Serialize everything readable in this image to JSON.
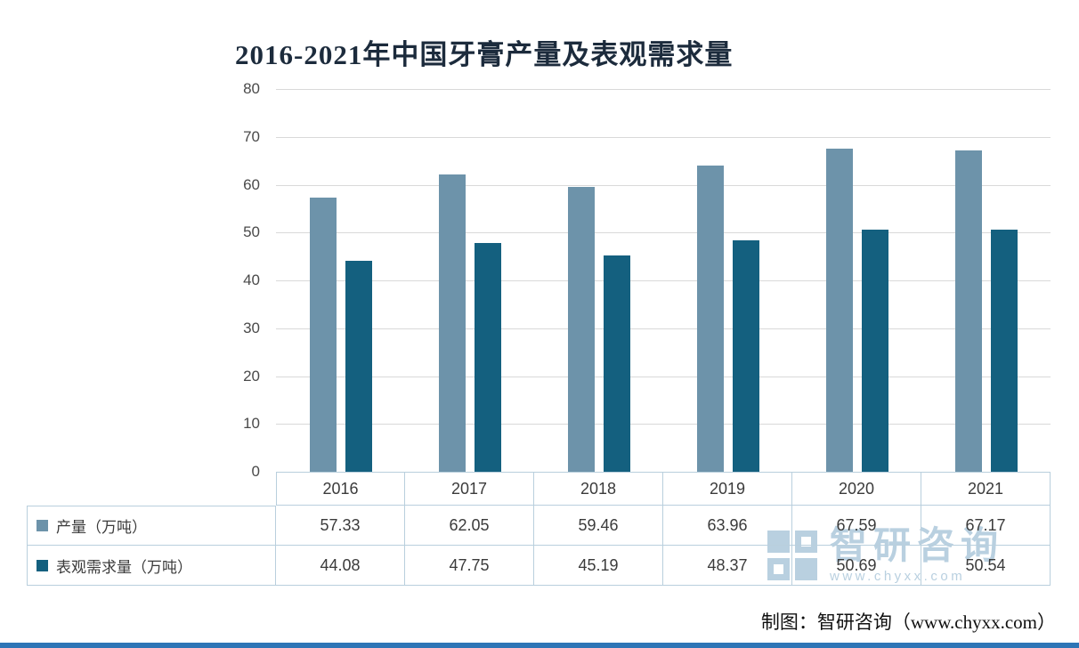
{
  "title": "2016-2021年中国牙膏产量及表观需求量",
  "chart_data": {
    "type": "bar",
    "title": "2016-2021年中国牙膏产量及表观需求量",
    "categories": [
      "2016",
      "2017",
      "2018",
      "2019",
      "2020",
      "2021"
    ],
    "series": [
      {
        "name": "产量（万吨）",
        "color": "#6d93aa",
        "values": [
          57.33,
          62.05,
          59.46,
          63.96,
          67.59,
          67.17
        ]
      },
      {
        "name": "表观需求量（万吨）",
        "color": "#14607f",
        "values": [
          44.08,
          47.75,
          45.19,
          48.37,
          50.69,
          50.54
        ]
      }
    ],
    "xlabel": "",
    "ylabel": "",
    "ylim": [
      0,
      80
    ],
    "yticks": [
      0,
      10,
      20,
      30,
      40,
      50,
      60,
      70,
      80
    ],
    "grid": true,
    "legend_position": "table-left"
  },
  "watermark": {
    "brand": "智研咨询",
    "url": "www.chyxx.com"
  },
  "credit": "制图：智研咨询（www.chyxx.com）",
  "colors": {
    "series_production": "#6d93aa",
    "series_demand": "#14607f",
    "gridline": "#d9d9d9",
    "table_border": "#b9cfdd",
    "watermark": "#b9d0e0",
    "bottom_bar": "#2e75b6"
  }
}
